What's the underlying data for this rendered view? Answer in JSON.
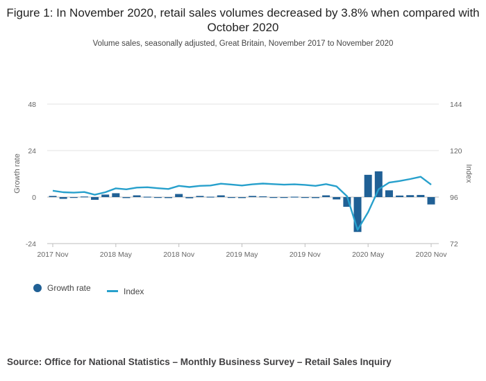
{
  "chart_data": {
    "type": "bar+line",
    "title": "Figure 1: In November 2020, retail sales volumes decreased by 3.8% when compared with October 2020",
    "subtitle": "Volume sales, seasonally adjusted, Great Britain, November 2017 to November 2020",
    "ylabel_left": "Growth rate",
    "ylabel_right": "Index",
    "ylim_left": [
      -24,
      48
    ],
    "ylim_right": [
      72,
      144
    ],
    "yticks_left": [
      "48",
      "24",
      "0",
      "-24"
    ],
    "yticks_right": [
      "144",
      "120",
      "96",
      "72"
    ],
    "xtick_labels": [
      "2017 Nov",
      "2018 May",
      "2018 Nov",
      "2019 May",
      "2019 Nov",
      "2020 May",
      "2020 Nov"
    ],
    "series": [
      {
        "name": "Growth rate",
        "kind": "bar",
        "color": "#206095",
        "values": [
          0.6,
          -0.9,
          0.0,
          0.3,
          -1.4,
          1.3,
          2.0,
          -0.5,
          0.9,
          0.2,
          -0.4,
          -0.5,
          1.6,
          -0.6,
          0.6,
          0.2,
          0.9,
          -0.4,
          -0.5,
          0.6,
          0.4,
          -0.3,
          -0.3,
          0.2,
          -0.3,
          -0.5,
          0.9,
          -1.2,
          -5.0,
          -18.0,
          11.5,
          13.3,
          3.5,
          0.8,
          1.0,
          1.1,
          -3.8
        ]
      },
      {
        "name": "Index",
        "kind": "line",
        "color": "#27a0cc",
        "values": [
          99.3,
          98.5,
          98.3,
          98.6,
          97.2,
          98.5,
          100.5,
          100.0,
          100.9,
          101.1,
          100.6,
          100.2,
          101.8,
          101.2,
          101.8,
          102.0,
          102.9,
          102.5,
          102.0,
          102.6,
          103.0,
          102.7,
          102.4,
          102.6,
          102.3,
          101.8,
          102.7,
          101.5,
          96.4,
          79.1,
          88.2,
          100.0,
          103.5,
          104.3,
          105.3,
          106.5,
          102.4
        ]
      }
    ]
  },
  "legend": {
    "growth_label": "Growth rate",
    "index_label": "Index"
  },
  "source": "Source: Office for National Statistics – Monthly Business Survey – Retail Sales Inquiry"
}
